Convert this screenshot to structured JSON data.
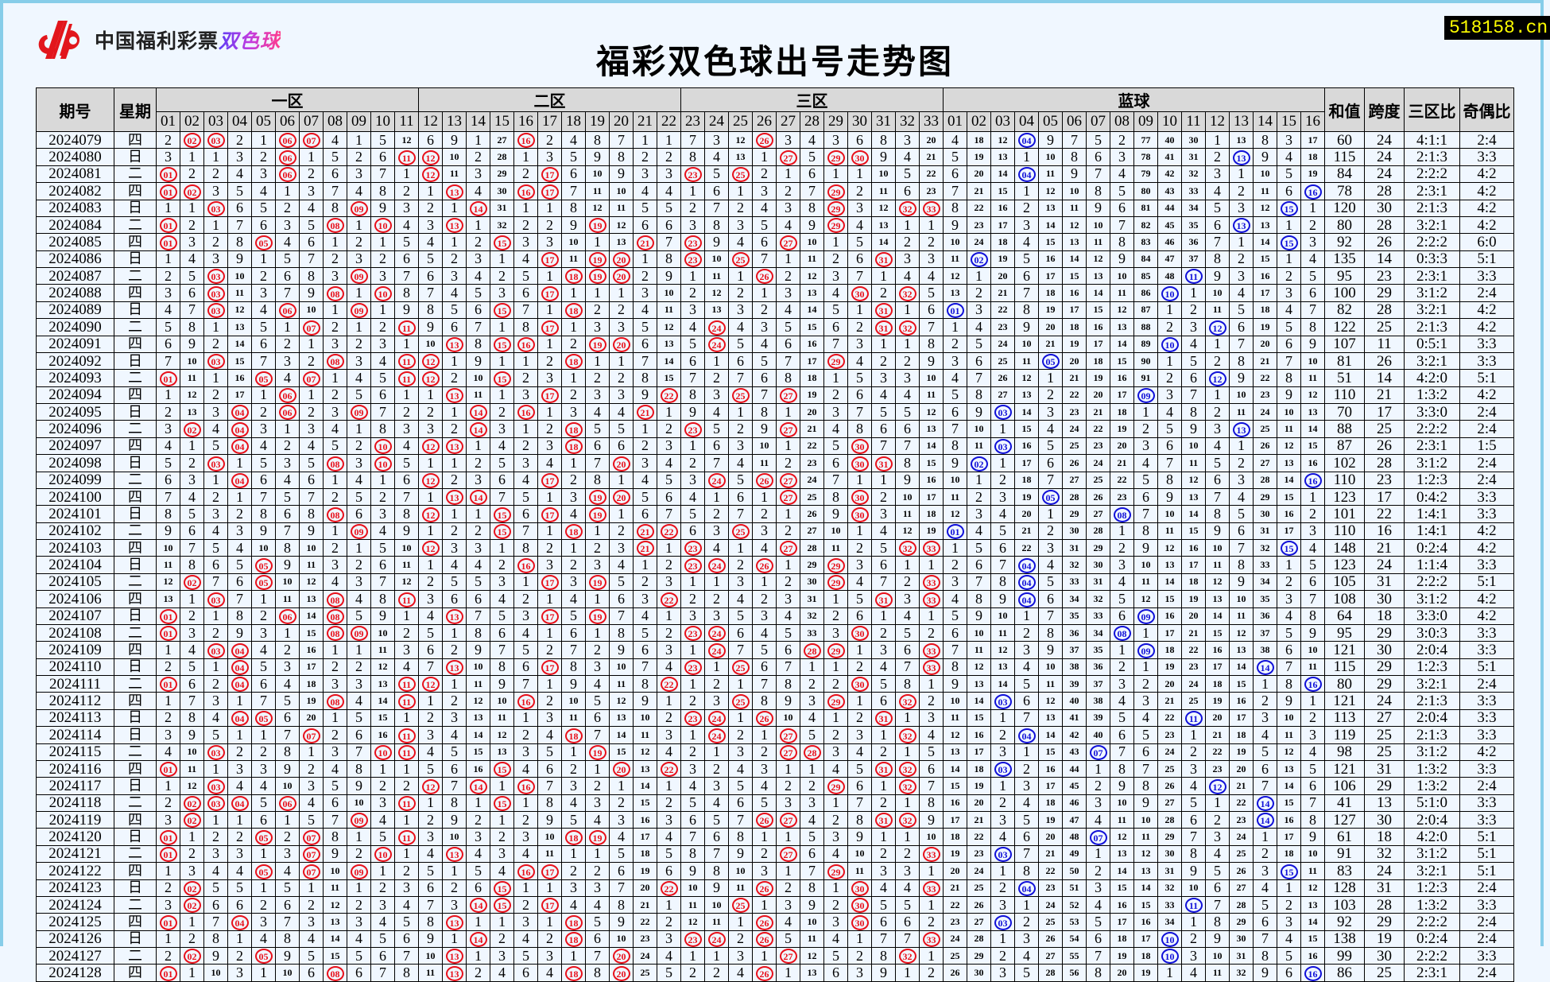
{
  "header": {
    "logo_text": "中国福利彩票",
    "logo_game": "双色球",
    "title": "福彩双色球出号走势图",
    "badge": "518158.cn"
  },
  "colors": {
    "red_ball": "#e8101a",
    "blue_ball": "#1010d8",
    "header_bg": "#d9d9d9",
    "badge_text": "#ffff00",
    "frame": "#87cde9"
  },
  "table": {
    "col_issue": "期号",
    "col_day": "星期",
    "zones": [
      "一区",
      "二区",
      "三区"
    ],
    "blue_zone": "蓝球",
    "col_sum": "和值",
    "col_span": "跨度",
    "col_zone_ratio": "三区比",
    "col_odd_even": "奇偶比",
    "red_labels": [
      "01",
      "02",
      "03",
      "04",
      "05",
      "06",
      "07",
      "08",
      "09",
      "10",
      "11",
      "12",
      "13",
      "14",
      "15",
      "16",
      "17",
      "18",
      "19",
      "20",
      "21",
      "22",
      "23",
      "24",
      "25",
      "26",
      "27",
      "28",
      "29",
      "30",
      "31",
      "32",
      "33"
    ],
    "blue_labels": [
      "01",
      "02",
      "03",
      "04",
      "05",
      "06",
      "07",
      "08",
      "09",
      "10",
      "11",
      "12",
      "13",
      "14",
      "15",
      "16"
    ]
  },
  "chart_data": {
    "type": "table",
    "title": "福彩双色球出号走势图",
    "first_row_omission": {
      "red": [
        2,
        0,
        0,
        2,
        1,
        0,
        0,
        4,
        1,
        5,
        12,
        6,
        9,
        1,
        27,
        0,
        2,
        4,
        8,
        7,
        1,
        1,
        7,
        3,
        12,
        0,
        3,
        4,
        3,
        6,
        8,
        3,
        20
      ],
      "blue": [
        4,
        18,
        12,
        0,
        9,
        7,
        5,
        2,
        77,
        40,
        30,
        1,
        13,
        8,
        3,
        17
      ]
    },
    "rows": [
      {
        "issue": "2024079",
        "day": "四",
        "red": [
          2,
          3,
          6,
          7,
          16,
          26
        ],
        "blue": 4,
        "sum": "60",
        "span": "24",
        "zone_ratio": "4:1:1",
        "odd_even": "2:4"
      },
      {
        "issue": "2024080",
        "day": "日",
        "red": [
          6,
          11,
          12,
          27,
          29,
          30
        ],
        "blue": 13,
        "sum": "115",
        "span": "24",
        "zone_ratio": "2:1:3",
        "odd_even": "3:3"
      },
      {
        "issue": "2024081",
        "day": "二",
        "red": [
          1,
          6,
          12,
          17,
          23,
          25
        ],
        "blue": 4,
        "sum": "84",
        "span": "24",
        "zone_ratio": "2:2:2",
        "odd_even": "4:2"
      },
      {
        "issue": "2024082",
        "day": "四",
        "red": [
          1,
          2,
          13,
          16,
          17,
          29
        ],
        "blue": 16,
        "sum": "78",
        "span": "28",
        "zone_ratio": "2:3:1",
        "odd_even": "4:2"
      },
      {
        "issue": "2024083",
        "day": "日",
        "red": [
          3,
          9,
          14,
          29,
          32,
          33
        ],
        "blue": 15,
        "sum": "120",
        "span": "30",
        "zone_ratio": "2:1:3",
        "odd_even": "4:2"
      },
      {
        "issue": "2024084",
        "day": "二",
        "red": [
          1,
          8,
          10,
          13,
          19,
          29
        ],
        "blue": 13,
        "sum": "80",
        "span": "28",
        "zone_ratio": "3:2:1",
        "odd_even": "4:2"
      },
      {
        "issue": "2024085",
        "day": "四",
        "red": [
          1,
          5,
          15,
          21,
          23,
          27
        ],
        "blue": 15,
        "sum": "92",
        "span": "26",
        "zone_ratio": "2:2:2",
        "odd_even": "6:0"
      },
      {
        "issue": "2024086",
        "day": "日",
        "red": [
          17,
          19,
          20,
          23,
          25,
          31
        ],
        "blue": 2,
        "sum": "135",
        "span": "14",
        "zone_ratio": "0:3:3",
        "odd_even": "5:1"
      },
      {
        "issue": "2024087",
        "day": "二",
        "red": [
          3,
          9,
          18,
          19,
          20,
          26
        ],
        "blue": 11,
        "sum": "95",
        "span": "23",
        "zone_ratio": "2:3:1",
        "odd_even": "3:3"
      },
      {
        "issue": "2024088",
        "day": "四",
        "red": [
          3,
          8,
          10,
          17,
          30,
          32
        ],
        "blue": 10,
        "sum": "100",
        "span": "29",
        "zone_ratio": "3:1:2",
        "odd_even": "2:4"
      },
      {
        "issue": "2024089",
        "day": "日",
        "red": [
          3,
          6,
          9,
          15,
          18,
          31
        ],
        "blue": 1,
        "sum": "82",
        "span": "28",
        "zone_ratio": "3:2:1",
        "odd_even": "4:2"
      },
      {
        "issue": "2024090",
        "day": "二",
        "red": [
          7,
          11,
          17,
          24,
          31,
          32
        ],
        "blue": 12,
        "sum": "122",
        "span": "25",
        "zone_ratio": "2:1:3",
        "odd_even": "4:2"
      },
      {
        "issue": "2024091",
        "day": "四",
        "red": [
          13,
          15,
          16,
          19,
          20,
          24
        ],
        "blue": 10,
        "sum": "107",
        "span": "11",
        "zone_ratio": "0:5:1",
        "odd_even": "3:3"
      },
      {
        "issue": "2024092",
        "day": "日",
        "red": [
          3,
          8,
          11,
          12,
          18,
          29
        ],
        "blue": 5,
        "sum": "81",
        "span": "26",
        "zone_ratio": "3:2:1",
        "odd_even": "3:3"
      },
      {
        "issue": "2024093",
        "day": "二",
        "red": [
          1,
          5,
          7,
          11,
          12,
          15
        ],
        "blue": 12,
        "sum": "51",
        "span": "14",
        "zone_ratio": "4:2:0",
        "odd_even": "5:1"
      },
      {
        "issue": "2024094",
        "day": "四",
        "red": [
          6,
          13,
          17,
          22,
          25,
          27
        ],
        "blue": 9,
        "sum": "110",
        "span": "21",
        "zone_ratio": "1:3:2",
        "odd_even": "4:2"
      },
      {
        "issue": "2024095",
        "day": "日",
        "red": [
          4,
          6,
          9,
          14,
          16,
          21
        ],
        "blue": 3,
        "sum": "70",
        "span": "17",
        "zone_ratio": "3:3:0",
        "odd_even": "2:4"
      },
      {
        "issue": "2024096",
        "day": "二",
        "red": [
          2,
          4,
          14,
          18,
          23,
          27
        ],
        "blue": 13,
        "sum": "88",
        "span": "25",
        "zone_ratio": "2:2:2",
        "odd_even": "2:4"
      },
      {
        "issue": "2024097",
        "day": "四",
        "red": [
          4,
          10,
          12,
          13,
          18,
          30
        ],
        "blue": 3,
        "sum": "87",
        "span": "26",
        "zone_ratio": "2:3:1",
        "odd_even": "1:5"
      },
      {
        "issue": "2024098",
        "day": "日",
        "red": [
          3,
          8,
          10,
          20,
          30,
          31
        ],
        "blue": 2,
        "sum": "102",
        "span": "28",
        "zone_ratio": "3:1:2",
        "odd_even": "2:4"
      },
      {
        "issue": "2024099",
        "day": "二",
        "red": [
          4,
          12,
          17,
          24,
          26,
          27
        ],
        "blue": 16,
        "sum": "110",
        "span": "23",
        "zone_ratio": "1:2:3",
        "odd_even": "2:4"
      },
      {
        "issue": "2024100",
        "day": "四",
        "red": [
          13,
          14,
          19,
          20,
          27,
          30
        ],
        "blue": 5,
        "sum": "123",
        "span": "17",
        "zone_ratio": "0:4:2",
        "odd_even": "3:3"
      },
      {
        "issue": "2024101",
        "day": "日",
        "red": [
          8,
          12,
          15,
          17,
          19,
          30
        ],
        "blue": 8,
        "sum": "101",
        "span": "22",
        "zone_ratio": "1:4:1",
        "odd_even": "3:3"
      },
      {
        "issue": "2024102",
        "day": "二",
        "red": [
          9,
          15,
          18,
          21,
          22,
          25
        ],
        "blue": 1,
        "sum": "110",
        "span": "16",
        "zone_ratio": "1:4:1",
        "odd_even": "4:2"
      },
      {
        "issue": "2024103",
        "day": "四",
        "red": [
          12,
          21,
          23,
          27,
          32,
          33
        ],
        "blue": 15,
        "sum": "148",
        "span": "21",
        "zone_ratio": "0:2:4",
        "odd_even": "4:2"
      },
      {
        "issue": "2024104",
        "day": "日",
        "red": [
          5,
          16,
          23,
          24,
          26,
          29
        ],
        "blue": 4,
        "sum": "123",
        "span": "24",
        "zone_ratio": "1:1:4",
        "odd_even": "3:3"
      },
      {
        "issue": "2024105",
        "day": "二",
        "red": [
          2,
          5,
          17,
          19,
          29,
          33
        ],
        "blue": 4,
        "sum": "105",
        "span": "31",
        "zone_ratio": "2:2:2",
        "odd_even": "5:1"
      },
      {
        "issue": "2024106",
        "day": "四",
        "red": [
          3,
          8,
          11,
          22,
          31,
          33
        ],
        "blue": 4,
        "sum": "108",
        "span": "30",
        "zone_ratio": "3:1:2",
        "odd_even": "4:2"
      },
      {
        "issue": "2024107",
        "day": "日",
        "red": [
          1,
          6,
          8,
          13,
          17,
          19
        ],
        "blue": 9,
        "sum": "64",
        "span": "18",
        "zone_ratio": "3:3:0",
        "odd_even": "4:2"
      },
      {
        "issue": "2024108",
        "day": "二",
        "red": [
          1,
          8,
          9,
          23,
          24,
          30
        ],
        "blue": 8,
        "sum": "95",
        "span": "29",
        "zone_ratio": "3:0:3",
        "odd_even": "3:3"
      },
      {
        "issue": "2024109",
        "day": "四",
        "red": [
          3,
          4,
          24,
          28,
          29,
          33
        ],
        "blue": 9,
        "sum": "121",
        "span": "30",
        "zone_ratio": "2:0:4",
        "odd_even": "3:3"
      },
      {
        "issue": "2024110",
        "day": "日",
        "red": [
          4,
          13,
          17,
          23,
          25,
          33
        ],
        "blue": 14,
        "sum": "115",
        "span": "29",
        "zone_ratio": "1:2:3",
        "odd_even": "5:1"
      },
      {
        "issue": "2024111",
        "day": "二",
        "red": [
          1,
          4,
          11,
          12,
          22,
          30
        ],
        "blue": 16,
        "sum": "80",
        "span": "29",
        "zone_ratio": "3:2:1",
        "odd_even": "2:4"
      },
      {
        "issue": "2024112",
        "day": "四",
        "red": [
          8,
          11,
          16,
          25,
          29,
          32
        ],
        "blue": 3,
        "sum": "121",
        "span": "24",
        "zone_ratio": "2:1:3",
        "odd_even": "3:3"
      },
      {
        "issue": "2024113",
        "day": "日",
        "red": [
          4,
          5,
          23,
          24,
          26,
          31
        ],
        "blue": 11,
        "sum": "113",
        "span": "27",
        "zone_ratio": "2:0:4",
        "odd_even": "3:3"
      },
      {
        "issue": "2024114",
        "day": "日",
        "red": [
          7,
          11,
          18,
          24,
          27,
          32
        ],
        "blue": 4,
        "sum": "119",
        "span": "25",
        "zone_ratio": "2:1:3",
        "odd_even": "3:3"
      },
      {
        "issue": "2024115",
        "day": "二",
        "red": [
          3,
          10,
          11,
          19,
          27,
          28
        ],
        "blue": 7,
        "sum": "98",
        "span": "25",
        "zone_ratio": "3:1:2",
        "odd_even": "4:2"
      },
      {
        "issue": "2024116",
        "day": "四",
        "red": [
          1,
          15,
          20,
          22,
          31,
          32
        ],
        "blue": 3,
        "sum": "121",
        "span": "31",
        "zone_ratio": "1:3:2",
        "odd_even": "3:3"
      },
      {
        "issue": "2024117",
        "day": "日",
        "red": [
          3,
          12,
          14,
          16,
          29,
          32
        ],
        "blue": 12,
        "sum": "106",
        "span": "29",
        "zone_ratio": "1:3:2",
        "odd_even": "2:4"
      },
      {
        "issue": "2024118",
        "day": "二",
        "red": [
          2,
          3,
          4,
          6,
          11,
          15
        ],
        "blue": 14,
        "sum": "41",
        "span": "13",
        "zone_ratio": "5:1:0",
        "odd_even": "3:3"
      },
      {
        "issue": "2024119",
        "day": "四",
        "red": [
          2,
          9,
          26,
          27,
          31,
          32
        ],
        "blue": 14,
        "sum": "127",
        "span": "30",
        "zone_ratio": "2:0:4",
        "odd_even": "3:3"
      },
      {
        "issue": "2024120",
        "day": "日",
        "red": [
          1,
          5,
          7,
          11,
          18,
          19
        ],
        "blue": 7,
        "sum": "61",
        "span": "18",
        "zone_ratio": "4:2:0",
        "odd_even": "5:1"
      },
      {
        "issue": "2024121",
        "day": "二",
        "red": [
          1,
          7,
          10,
          13,
          27,
          33
        ],
        "blue": 3,
        "sum": "91",
        "span": "32",
        "zone_ratio": "3:1:2",
        "odd_even": "5:1"
      },
      {
        "issue": "2024122",
        "day": "四",
        "red": [
          5,
          7,
          9,
          16,
          17,
          29
        ],
        "blue": 15,
        "sum": "83",
        "span": "24",
        "zone_ratio": "3:2:1",
        "odd_even": "5:1"
      },
      {
        "issue": "2024123",
        "day": "日",
        "red": [
          2,
          15,
          22,
          26,
          30,
          33
        ],
        "blue": 4,
        "sum": "128",
        "span": "31",
        "zone_ratio": "1:2:3",
        "odd_even": "2:4"
      },
      {
        "issue": "2024124",
        "day": "二",
        "red": [
          2,
          14,
          15,
          17,
          25,
          30
        ],
        "blue": 11,
        "sum": "103",
        "span": "28",
        "zone_ratio": "1:3:2",
        "odd_even": "3:3"
      },
      {
        "issue": "2024125",
        "day": "四",
        "red": [
          1,
          4,
          13,
          18,
          26,
          30
        ],
        "blue": 3,
        "sum": "92",
        "span": "29",
        "zone_ratio": "2:2:2",
        "odd_even": "2:4"
      },
      {
        "issue": "2024126",
        "day": "日",
        "red": [
          14,
          18,
          23,
          24,
          26,
          33
        ],
        "blue": 10,
        "sum": "138",
        "span": "19",
        "zone_ratio": "0:2:4",
        "odd_even": "2:4"
      },
      {
        "issue": "2024127",
        "day": "二",
        "red": [
          2,
          5,
          13,
          20,
          27,
          32
        ],
        "blue": 10,
        "sum": "99",
        "span": "30",
        "zone_ratio": "2:2:2",
        "odd_even": "3:3"
      },
      {
        "issue": "2024128",
        "day": "四",
        "red": [
          1,
          8,
          13,
          18,
          20,
          26
        ],
        "blue": 16,
        "sum": "86",
        "span": "25",
        "zone_ratio": "2:3:1",
        "odd_even": "2:4"
      }
    ]
  }
}
